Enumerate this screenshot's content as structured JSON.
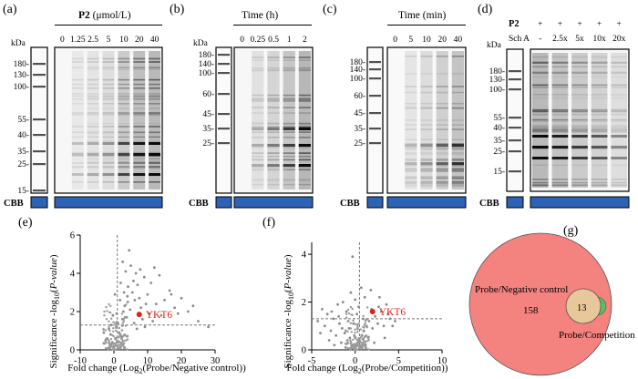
{
  "panels": {
    "a": {
      "label": "(a)",
      "title_bold": "P2",
      "title_unit": " (μmol/L)",
      "lanes": [
        "0",
        "1.25",
        "2.5",
        "5",
        "10",
        "20",
        "40"
      ],
      "intensity": [
        0.0,
        0.12,
        0.2,
        0.3,
        0.62,
        0.82,
        0.92
      ],
      "kda_header": "kDa",
      "markers": [
        "180-",
        "130-",
        "100-",
        "55-",
        "40-",
        "35-",
        "25-",
        "15-"
      ],
      "cbb": "CBB"
    },
    "b": {
      "label": "(b)",
      "title": "Time (h)",
      "lanes": [
        "0",
        "0.25",
        "0.5",
        "1",
        "2"
      ],
      "intensity": [
        0.02,
        0.25,
        0.45,
        0.7,
        0.95
      ],
      "kda_header": "kDa",
      "markers": [
        "180-",
        "140-",
        "100-",
        "60-",
        "45-",
        "35-",
        "25-"
      ],
      "cbb": "CBB"
    },
    "c": {
      "label": "(c)",
      "title": "Time (min)",
      "lanes": [
        "0",
        "5",
        "10",
        "20",
        "40"
      ],
      "intensity": [
        0.02,
        0.2,
        0.35,
        0.55,
        0.75
      ],
      "kda_header": "kDa",
      "markers": [
        "180-",
        "140-",
        "100-",
        "60-",
        "45-",
        "35-",
        "25-"
      ],
      "cbb": "CBB"
    },
    "d": {
      "label": "(d)",
      "row1_label": "P2",
      "row1_values": [
        "+",
        "+",
        "+",
        "+",
        "+"
      ],
      "row2_label": "Sch A",
      "row2_values": [
        "-",
        "2.5x",
        "5x",
        "10x",
        "20x"
      ],
      "intensity": [
        0.92,
        0.75,
        0.62,
        0.5,
        0.3
      ],
      "kda_header": "kDa",
      "markers": [
        "180-",
        "130-",
        "100-",
        "55-",
        "40-",
        "35-",
        "25-",
        "15-"
      ],
      "cbb": "CBB"
    },
    "e": {
      "label": "(e)",
      "ylabel_prefix": "Significance -log",
      "ylabel_sub": "10",
      "ylabel_open": "(",
      "ylabel_italic": "P-value",
      "ylabel_close": ")",
      "xlabel_prefix": "Fold change (Log",
      "xlabel_sub": "2",
      "xlabel_suffix": "(Probe/Negative control))",
      "highlight": "YKT6"
    },
    "f": {
      "label": "(f)",
      "ylabel_prefix": "Significance -log",
      "ylabel_sub": "10",
      "ylabel_open": "(",
      "ylabel_italic": "P-value",
      "ylabel_close": ")",
      "xlabel_prefix": "Fold change (Log",
      "xlabel_sub": "2",
      "xlabel_suffix": "(Probe/Competition))",
      "highlight": "YKT6"
    },
    "g": {
      "label": "(g)",
      "set1": "Probe/Negative control",
      "set2": "Probe/Competition",
      "only1": "158",
      "overlap": "13",
      "colors": {
        "set1": "#f4827f",
        "set2": "#e8c89a",
        "sliver": "#5dbb63"
      }
    }
  },
  "chart_data": [
    {
      "type": "scatter",
      "panel": "e",
      "title": "",
      "xlabel": "Fold change (Log2(Probe/Negative control))",
      "ylabel": "Significance -log10(P-value)",
      "xlim": [
        -10,
        30
      ],
      "ylim": [
        0,
        6
      ],
      "xticks": [
        "-10",
        "0",
        "10",
        "20",
        "30"
      ],
      "yticks": [
        "0",
        "2",
        "4",
        "6"
      ],
      "xtick_values": [
        -10,
        0,
        10,
        20,
        30
      ],
      "ytick_values": [
        0,
        2,
        4,
        6
      ],
      "threshold_x": 1,
      "threshold_y": 1.3,
      "highlight": {
        "name": "YKT6",
        "x": 7.5,
        "y": 1.85
      },
      "points": [
        [
          0.5,
          0.6
        ],
        [
          1.5,
          0.9
        ],
        [
          2.5,
          1.6
        ],
        [
          3.2,
          2.3
        ],
        [
          4.0,
          2.8
        ],
        [
          4.8,
          2.1
        ],
        [
          5.5,
          3.0
        ],
        [
          6.2,
          2.6
        ],
        [
          7.0,
          3.4
        ],
        [
          8.0,
          2.2
        ],
        [
          9.0,
          3.8
        ],
        [
          10.0,
          2.9
        ],
        [
          11.0,
          3.5
        ],
        [
          12.5,
          2.4
        ],
        [
          13.5,
          3.9
        ],
        [
          15.0,
          2.6
        ],
        [
          16.5,
          3.1
        ],
        [
          18.0,
          2.2
        ],
        [
          20.0,
          2.7
        ],
        [
          22.0,
          2.0
        ],
        [
          25.0,
          1.5
        ],
        [
          28.0,
          1.2
        ],
        [
          3.5,
          4.1
        ],
        [
          5.0,
          4.4
        ],
        [
          6.5,
          4.0
        ],
        [
          4.5,
          5.2
        ],
        [
          2.0,
          3.5
        ],
        [
          2.8,
          2.0
        ],
        [
          1.8,
          2.6
        ],
        [
          3.8,
          1.7
        ],
        [
          6.0,
          1.4
        ],
        [
          8.5,
          1.6
        ],
        [
          10.5,
          1.9
        ],
        [
          7.5,
          2.7
        ],
        [
          9.5,
          2.4
        ],
        [
          11.5,
          1.5
        ],
        [
          14.0,
          1.8
        ],
        [
          0.8,
          1.9
        ],
        [
          1.2,
          1.4
        ],
        [
          -0.5,
          0.4
        ],
        [
          -1.0,
          0.8
        ],
        [
          -1.5,
          1.1
        ],
        [
          -2.0,
          0.6
        ],
        [
          -3.0,
          0.9
        ],
        [
          -1.2,
          0.3
        ],
        [
          0.2,
          0.2
        ],
        [
          1.0,
          0.4
        ],
        [
          2.2,
          0.7
        ],
        [
          -0.8,
          1.3
        ],
        [
          -2.5,
          0.5
        ],
        [
          4.2,
          3.3
        ],
        [
          5.8,
          3.6
        ],
        [
          7.8,
          4.2
        ],
        [
          3.0,
          3.0
        ],
        [
          12.0,
          4.3
        ],
        [
          0.3,
          2.9
        ],
        [
          -0.3,
          1.8
        ],
        [
          17.0,
          2.9
        ],
        [
          19.0,
          1.9
        ],
        [
          23.5,
          2.3
        ],
        [
          6.8,
          1.1
        ],
        [
          9.2,
          1.2
        ],
        [
          2.6,
          4.6
        ],
        [
          4.1,
          2.5
        ]
      ]
    },
    {
      "type": "scatter",
      "panel": "f",
      "title": "",
      "xlabel": "Fold change (Log2(Probe/Competition))",
      "ylabel": "Significance -log10(P-value)",
      "xlim": [
        -5,
        10
      ],
      "ylim": [
        0,
        4.5
      ],
      "xticks": [
        "-5",
        "0",
        "5",
        "10"
      ],
      "yticks": [
        "0",
        "2",
        "4"
      ],
      "xtick_values": [
        -5,
        0,
        5,
        10
      ],
      "ytick_values": [
        0,
        2,
        4
      ],
      "threshold_x": 0.5,
      "threshold_y": 1.3,
      "highlight": {
        "name": "YKT6",
        "x": 2.0,
        "y": 1.6
      },
      "points": [
        [
          -0.2,
          0.1
        ],
        [
          0.1,
          0.2
        ],
        [
          0.3,
          0.3
        ],
        [
          -0.4,
          0.2
        ],
        [
          0.5,
          0.4
        ],
        [
          -0.6,
          0.5
        ],
        [
          0.8,
          0.6
        ],
        [
          -0.9,
          0.4
        ],
        [
          1.0,
          0.8
        ],
        [
          -1.2,
          0.7
        ],
        [
          1.3,
          1.0
        ],
        [
          -1.5,
          0.9
        ],
        [
          1.6,
          1.2
        ],
        [
          -1.8,
          1.1
        ],
        [
          2.0,
          0.9
        ],
        [
          -2.2,
          0.6
        ],
        [
          2.3,
          1.4
        ],
        [
          -2.5,
          1.3
        ],
        [
          2.6,
          1.1
        ],
        [
          -2.8,
          0.8
        ],
        [
          3.0,
          1.6
        ],
        [
          -3.2,
          1.5
        ],
        [
          3.3,
          1.0
        ],
        [
          -3.5,
          1.0
        ],
        [
          3.6,
          1.9
        ],
        [
          -3.8,
          1.7
        ],
        [
          4.0,
          1.3
        ],
        [
          -4.0,
          0.7
        ],
        [
          4.3,
          1.0
        ],
        [
          0.0,
          2.1
        ],
        [
          -0.5,
          2.4
        ],
        [
          0.4,
          1.8
        ],
        [
          1.1,
          2.2
        ],
        [
          -1.0,
          1.6
        ],
        [
          0.7,
          2.6
        ],
        [
          -0.3,
          3.9
        ],
        [
          -1.4,
          2.0
        ],
        [
          1.8,
          2.5
        ],
        [
          2.8,
          2.2
        ],
        [
          -2.0,
          1.9
        ],
        [
          0.2,
          1.5
        ],
        [
          -0.8,
          1.2
        ],
        [
          1.5,
          0.5
        ],
        [
          -1.6,
          0.3
        ],
        [
          2.2,
          0.3
        ],
        [
          -2.4,
          0.2
        ],
        [
          3.4,
          0.5
        ],
        [
          -3.0,
          0.4
        ],
        [
          0.6,
          0.1
        ],
        [
          -0.1,
          0.6
        ],
        [
          0.9,
          1.3
        ],
        [
          -0.7,
          0.9
        ],
        [
          1.9,
          1.7
        ],
        [
          -1.9,
          1.4
        ],
        [
          2.7,
          1.8
        ],
        [
          -2.7,
          1.6
        ],
        [
          3.8,
          1.5
        ],
        [
          4.6,
          1.2
        ],
        [
          -4.3,
          1.2
        ],
        [
          0.3,
          0.9
        ],
        [
          -0.2,
          1.1
        ],
        [
          0.0,
          0.5
        ],
        [
          1.2,
          0.2
        ],
        [
          -1.1,
          0.1
        ]
      ]
    },
    {
      "type": "venn",
      "panel": "g",
      "sets": [
        "Probe/Negative control",
        "Probe/Competition"
      ],
      "only_set1": 158,
      "overlap": 13
    }
  ]
}
